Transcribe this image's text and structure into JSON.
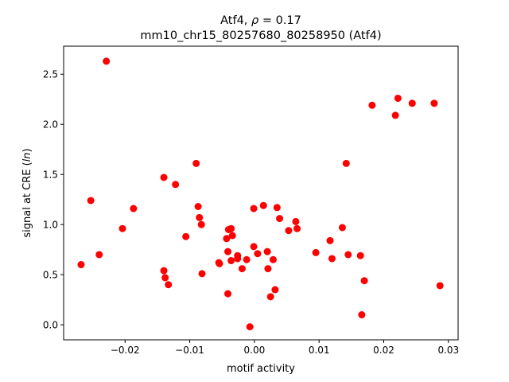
{
  "chart_data": {
    "type": "scatter",
    "title_line1_prefix": "Atf4, ",
    "title_line1_rho": "ρ",
    "title_line1_suffix": " = 0.17",
    "title_line2": "mm10_chr15_80257680_80258950 (Atf4)",
    "xlabel": "motif activity",
    "ylabel_prefix": "signal at CRE (",
    "ylabel_italic": "ln",
    "ylabel_suffix": ")",
    "xlim": [
      -0.0295,
      0.0315
    ],
    "ylim": [
      -0.15,
      2.78
    ],
    "x_ticks": [
      {
        "value": -0.02,
        "label": "−0.02"
      },
      {
        "value": -0.01,
        "label": "−0.01"
      },
      {
        "value": 0.0,
        "label": "0.00"
      },
      {
        "value": 0.01,
        "label": "0.01"
      },
      {
        "value": 0.02,
        "label": "0.02"
      },
      {
        "value": 0.03,
        "label": "0.03"
      }
    ],
    "y_ticks": [
      {
        "value": 0.0,
        "label": "0.0"
      },
      {
        "value": 0.5,
        "label": "0.5"
      },
      {
        "value": 1.0,
        "label": "1.0"
      },
      {
        "value": 1.5,
        "label": "1.5"
      },
      {
        "value": 2.0,
        "label": "2.0"
      },
      {
        "value": 2.5,
        "label": "2.5"
      }
    ],
    "grid": false,
    "marker_color": "#ff0000",
    "points": [
      {
        "x": -0.0268,
        "y": 0.6
      },
      {
        "x": -0.0253,
        "y": 1.24
      },
      {
        "x": -0.024,
        "y": 0.7
      },
      {
        "x": -0.0229,
        "y": 2.63
      },
      {
        "x": -0.0204,
        "y": 0.96
      },
      {
        "x": -0.0187,
        "y": 1.16
      },
      {
        "x": -0.014,
        "y": 1.47
      },
      {
        "x": -0.014,
        "y": 0.54
      },
      {
        "x": -0.0138,
        "y": 0.47
      },
      {
        "x": -0.0133,
        "y": 0.4
      },
      {
        "x": -0.0122,
        "y": 1.4
      },
      {
        "x": -0.0106,
        "y": 0.88
      },
      {
        "x": -0.009,
        "y": 1.61
      },
      {
        "x": -0.0087,
        "y": 1.18
      },
      {
        "x": -0.0085,
        "y": 1.07
      },
      {
        "x": -0.0082,
        "y": 1.0
      },
      {
        "x": -0.0081,
        "y": 0.51
      },
      {
        "x": -0.0055,
        "y": 0.62
      },
      {
        "x": -0.0054,
        "y": 0.61
      },
      {
        "x": -0.0043,
        "y": 0.86
      },
      {
        "x": -0.004,
        "y": 0.95
      },
      {
        "x": -0.0041,
        "y": 0.73
      },
      {
        "x": -0.0041,
        "y": 0.31
      },
      {
        "x": -0.0036,
        "y": 0.96
      },
      {
        "x": -0.0034,
        "y": 0.89
      },
      {
        "x": -0.0036,
        "y": 0.64
      },
      {
        "x": -0.0026,
        "y": 0.69
      },
      {
        "x": -0.0026,
        "y": 0.66
      },
      {
        "x": -0.0019,
        "y": 0.56
      },
      {
        "x": -0.0012,
        "y": 0.65
      },
      {
        "x": -0.0007,
        "y": -0.02
      },
      {
        "x": -0.0001,
        "y": 1.16
      },
      {
        "x": -0.0001,
        "y": 0.78
      },
      {
        "x": 0.0005,
        "y": 0.71
      },
      {
        "x": 0.0014,
        "y": 1.19
      },
      {
        "x": 0.002,
        "y": 0.73
      },
      {
        "x": 0.0021,
        "y": 0.56
      },
      {
        "x": 0.0025,
        "y": 0.28
      },
      {
        "x": 0.0029,
        "y": 0.65
      },
      {
        "x": 0.0032,
        "y": 0.35
      },
      {
        "x": 0.0035,
        "y": 1.17
      },
      {
        "x": 0.0039,
        "y": 1.06
      },
      {
        "x": 0.0053,
        "y": 0.94
      },
      {
        "x": 0.0064,
        "y": 1.03
      },
      {
        "x": 0.0066,
        "y": 0.96
      },
      {
        "x": 0.0095,
        "y": 0.72
      },
      {
        "x": 0.0117,
        "y": 0.84
      },
      {
        "x": 0.012,
        "y": 0.66
      },
      {
        "x": 0.0136,
        "y": 0.97
      },
      {
        "x": 0.0142,
        "y": 1.61
      },
      {
        "x": 0.0145,
        "y": 0.7
      },
      {
        "x": 0.0164,
        "y": 0.69
      },
      {
        "x": 0.0166,
        "y": 0.1
      },
      {
        "x": 0.017,
        "y": 0.44
      },
      {
        "x": 0.0182,
        "y": 2.19
      },
      {
        "x": 0.0218,
        "y": 2.09
      },
      {
        "x": 0.0222,
        "y": 2.26
      },
      {
        "x": 0.0244,
        "y": 2.21
      },
      {
        "x": 0.0278,
        "y": 2.21
      },
      {
        "x": 0.0287,
        "y": 0.39
      }
    ]
  }
}
